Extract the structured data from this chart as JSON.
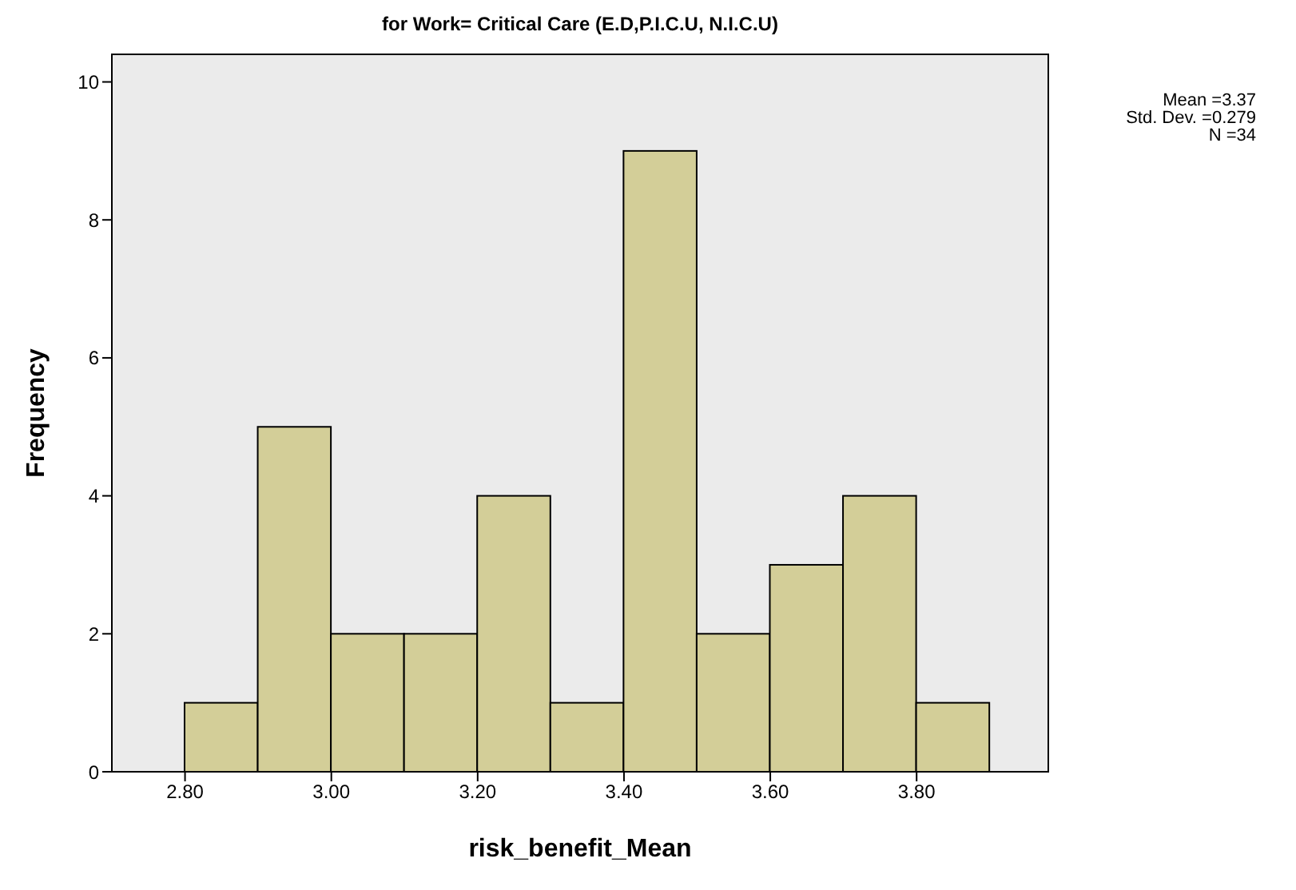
{
  "chart_data": {
    "type": "histogram",
    "title": "for Work= Critical Care (E.D,P.I.C.U, N.I.C.U)",
    "xlabel": "risk_benefit_Mean",
    "ylabel": "Frequency",
    "bins": [
      2.8,
      2.9,
      3.0,
      3.1,
      3.2,
      3.3,
      3.4,
      3.5,
      3.6,
      3.7,
      3.8,
      3.9
    ],
    "values": [
      1,
      5,
      2,
      2,
      4,
      1,
      9,
      2,
      3,
      4,
      1
    ],
    "color": "#d3ce98",
    "xlim": [
      2.7,
      3.98
    ],
    "xticks": [
      {
        "value": 2.8,
        "label": "2.80"
      },
      {
        "value": 3.0,
        "label": "3.00"
      },
      {
        "value": 3.2,
        "label": "3.20"
      },
      {
        "value": 3.4,
        "label": "3.40"
      },
      {
        "value": 3.6,
        "label": "3.60"
      },
      {
        "value": 3.8,
        "label": "3.80"
      }
    ],
    "ylim": [
      0,
      10.4
    ],
    "yticks": [
      0,
      2,
      4,
      6,
      8,
      10
    ],
    "annotations": [
      "Mean =3.37",
      "Std. Dev. =0.279",
      "N =34"
    ]
  }
}
